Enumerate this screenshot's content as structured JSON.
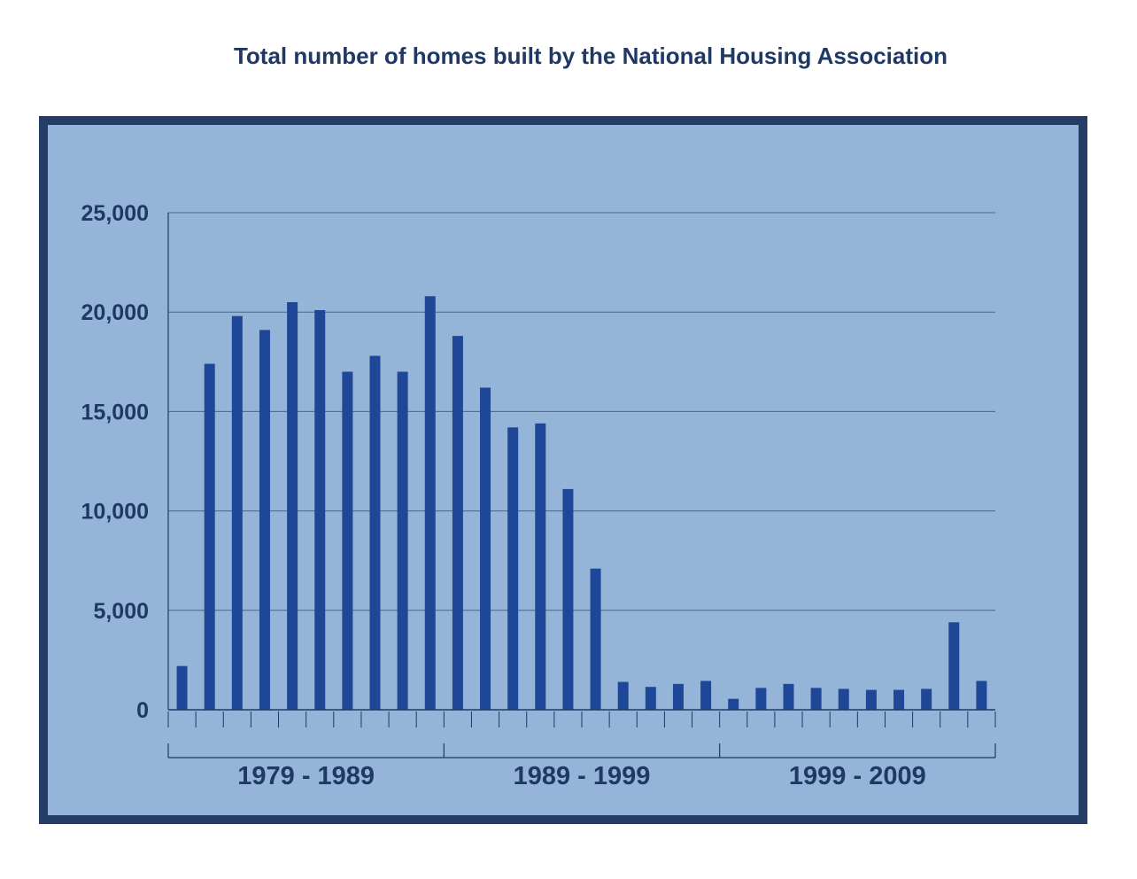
{
  "chart_data": {
    "type": "bar",
    "title": "Total number of homes built by the National Housing Association",
    "xlabel": "",
    "ylabel": "",
    "ylim": [
      0,
      25000
    ],
    "yticks": [
      {
        "value": 0,
        "label": "0"
      },
      {
        "value": 5000,
        "label": "5,000"
      },
      {
        "value": 10000,
        "label": "10,000"
      },
      {
        "value": 15000,
        "label": "15,000"
      },
      {
        "value": 20000,
        "label": "20,000"
      },
      {
        "value": 25000,
        "label": "25,000"
      }
    ],
    "groups": [
      {
        "label": "1979 - 1989",
        "bars": 10
      },
      {
        "label": "1989 - 1999",
        "bars": 10
      },
      {
        "label": "1999 - 2009",
        "bars": 10
      }
    ],
    "values": [
      2200,
      17400,
      19800,
      19100,
      20500,
      20100,
      17000,
      17800,
      17000,
      20800,
      18800,
      16200,
      14200,
      14400,
      11100,
      7100,
      1400,
      1150,
      1300,
      1450,
      550,
      1100,
      1300,
      1100,
      1050,
      1000,
      1000,
      1050,
      4400,
      1450
    ],
    "grid": true,
    "legend": "none",
    "colors": {
      "bar": "#1f4797",
      "plot_bg": "#94b5d8",
      "frame": "#233d66",
      "text": "#1f3864",
      "grid": "#4a6688",
      "axis": "#1f3864"
    }
  }
}
